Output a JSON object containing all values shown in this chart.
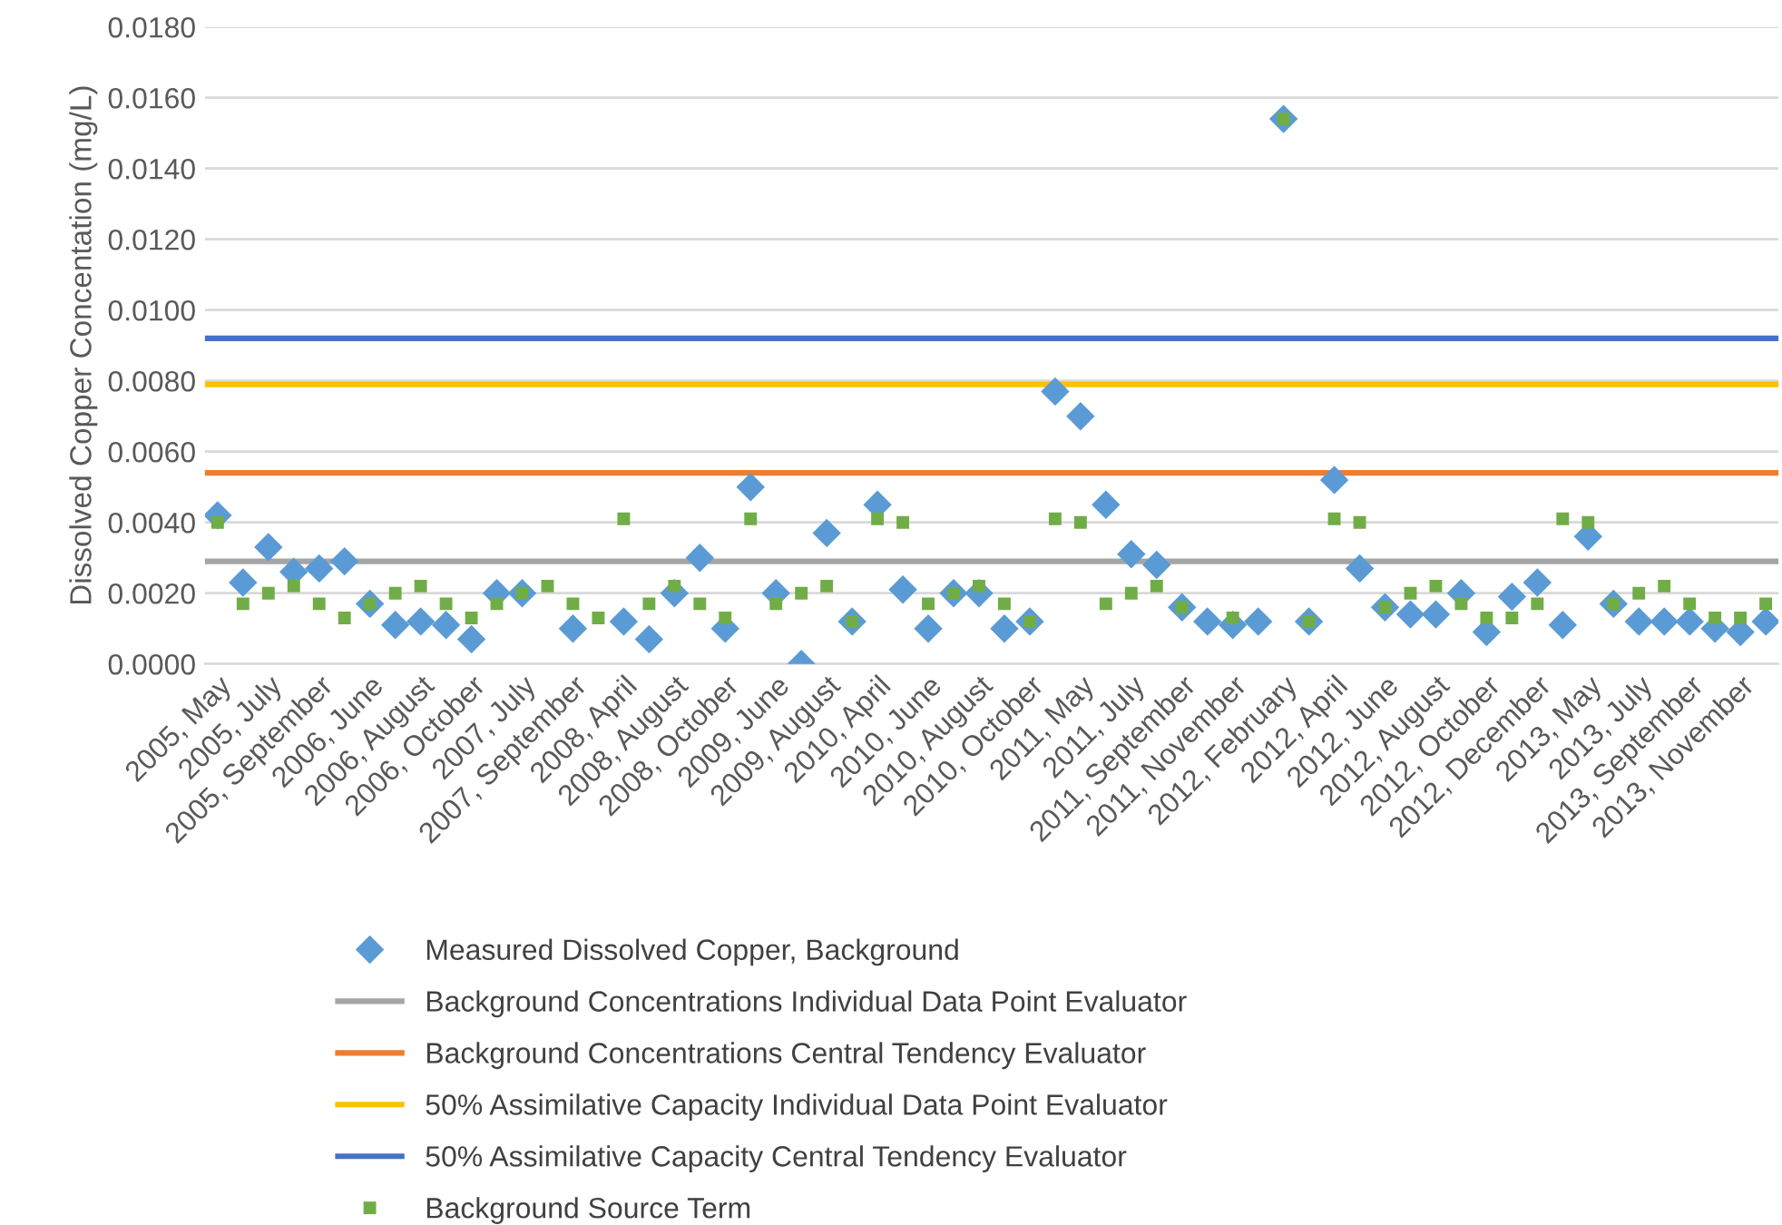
{
  "chart_data": {
    "type": "scatter",
    "ylabel": "Dissolved Copper Concentation (mg/L)",
    "categories": [
      "2005, May",
      null,
      "2005, July",
      null,
      "2005, September",
      null,
      "2006, June",
      null,
      "2006, August",
      null,
      "2006, October",
      null,
      "2007, July",
      null,
      "2007, September",
      null,
      "2008, April",
      null,
      "2008, August",
      null,
      "2008, October",
      null,
      "2009, June",
      null,
      "2009, August",
      null,
      "2010, April",
      null,
      "2010, June",
      null,
      "2010, August",
      null,
      "2010, October",
      null,
      "2011, May",
      null,
      "2011, July",
      null,
      "2011, September",
      null,
      "2011, November",
      null,
      "2012, February",
      null,
      "2012, April",
      null,
      "2012, June",
      null,
      "2012, August",
      null,
      "2012, October",
      null,
      "2012, December",
      null,
      "2013, May",
      null,
      "2013, July",
      null,
      "2013, September",
      null,
      "2013, November",
      null
    ],
    "series": [
      {
        "name": "Measured Dissolved Copper, Background",
        "color": "#5b9bd5",
        "marker": "diamond",
        "values": [
          0.0042,
          0.0023,
          0.0033,
          0.0026,
          0.0027,
          0.0029,
          0.0017,
          0.0011,
          0.0012,
          0.0011,
          0.0007,
          0.002,
          0.002,
          null,
          0.001,
          null,
          0.0012,
          0.0007,
          0.002,
          0.003,
          0.001,
          0.005,
          0.002,
          0.0,
          0.0037,
          0.0012,
          0.0045,
          0.0021,
          0.001,
          0.002,
          0.002,
          0.001,
          0.0012,
          0.0077,
          0.007,
          0.0045,
          0.0031,
          0.0028,
          0.0016,
          0.0012,
          0.0011,
          0.0012,
          0.0154,
          0.0012,
          0.0052,
          0.0027,
          0.0016,
          0.0014,
          0.0014,
          0.002,
          0.0009,
          0.0019,
          0.0023,
          0.0011,
          0.0036,
          0.0017,
          0.0012,
          0.0012,
          0.0012,
          0.001,
          0.0009,
          0.0012
        ]
      },
      {
        "name": "Background Source Term",
        "color": "#70ad47",
        "marker": "square",
        "values": [
          0.004,
          0.0017,
          0.002,
          0.0022,
          0.0017,
          0.0013,
          0.0017,
          0.002,
          0.0022,
          0.0017,
          0.0013,
          0.0017,
          0.002,
          0.0022,
          0.0017,
          0.0013,
          0.0041,
          0.0017,
          0.0022,
          0.0017,
          0.0013,
          0.0041,
          0.0017,
          0.002,
          0.0022,
          0.0012,
          0.0041,
          0.004,
          0.0017,
          0.002,
          0.0022,
          0.0017,
          0.0012,
          0.0041,
          0.004,
          0.0017,
          0.002,
          0.0022,
          0.0016,
          null,
          0.0013,
          null,
          0.0154,
          0.0012,
          0.0041,
          0.004,
          0.0016,
          0.002,
          0.0022,
          0.0017,
          0.0013,
          0.0013,
          0.0017,
          0.0041,
          0.004,
          0.0017,
          0.002,
          0.0022,
          0.0017,
          0.0013,
          0.0013,
          0.0017
        ]
      }
    ],
    "ref_lines": [
      {
        "axis": "y",
        "value": 0.0029,
        "label": "Background Concentrations Individual Data Point Evaluator",
        "color": "#a5a5a5"
      },
      {
        "axis": "y",
        "value": 0.0054,
        "label": "Background Concentrations Central Tendency Evaluator",
        "color": "#ed7d31"
      },
      {
        "axis": "y",
        "value": 0.0079,
        "label": "50% Assimilative Capacity Individual Data Point Evaluator",
        "color": "#ffc000"
      },
      {
        "axis": "y",
        "value": 0.0092,
        "label": "50% Assimilative Capacity Central Tendency Evaluator",
        "color": "#4472c4"
      }
    ],
    "ylim": [
      0,
      0.018
    ],
    "yticks": [
      {
        "value": 0,
        "label": "0.0000"
      },
      {
        "value": 0.002,
        "label": "0.0020"
      },
      {
        "value": 0.004,
        "label": "0.0040"
      },
      {
        "value": 0.006,
        "label": "0.0060"
      },
      {
        "value": 0.008,
        "label": "0.0080"
      },
      {
        "value": 0.01,
        "label": "0.0100"
      },
      {
        "value": 0.012,
        "label": "0.0120"
      },
      {
        "value": 0.014,
        "label": "0.0140"
      },
      {
        "value": 0.016,
        "label": "0.0160"
      },
      {
        "value": 0.018,
        "label": "0.0180"
      }
    ],
    "grid": "y",
    "legend": "bottom"
  }
}
